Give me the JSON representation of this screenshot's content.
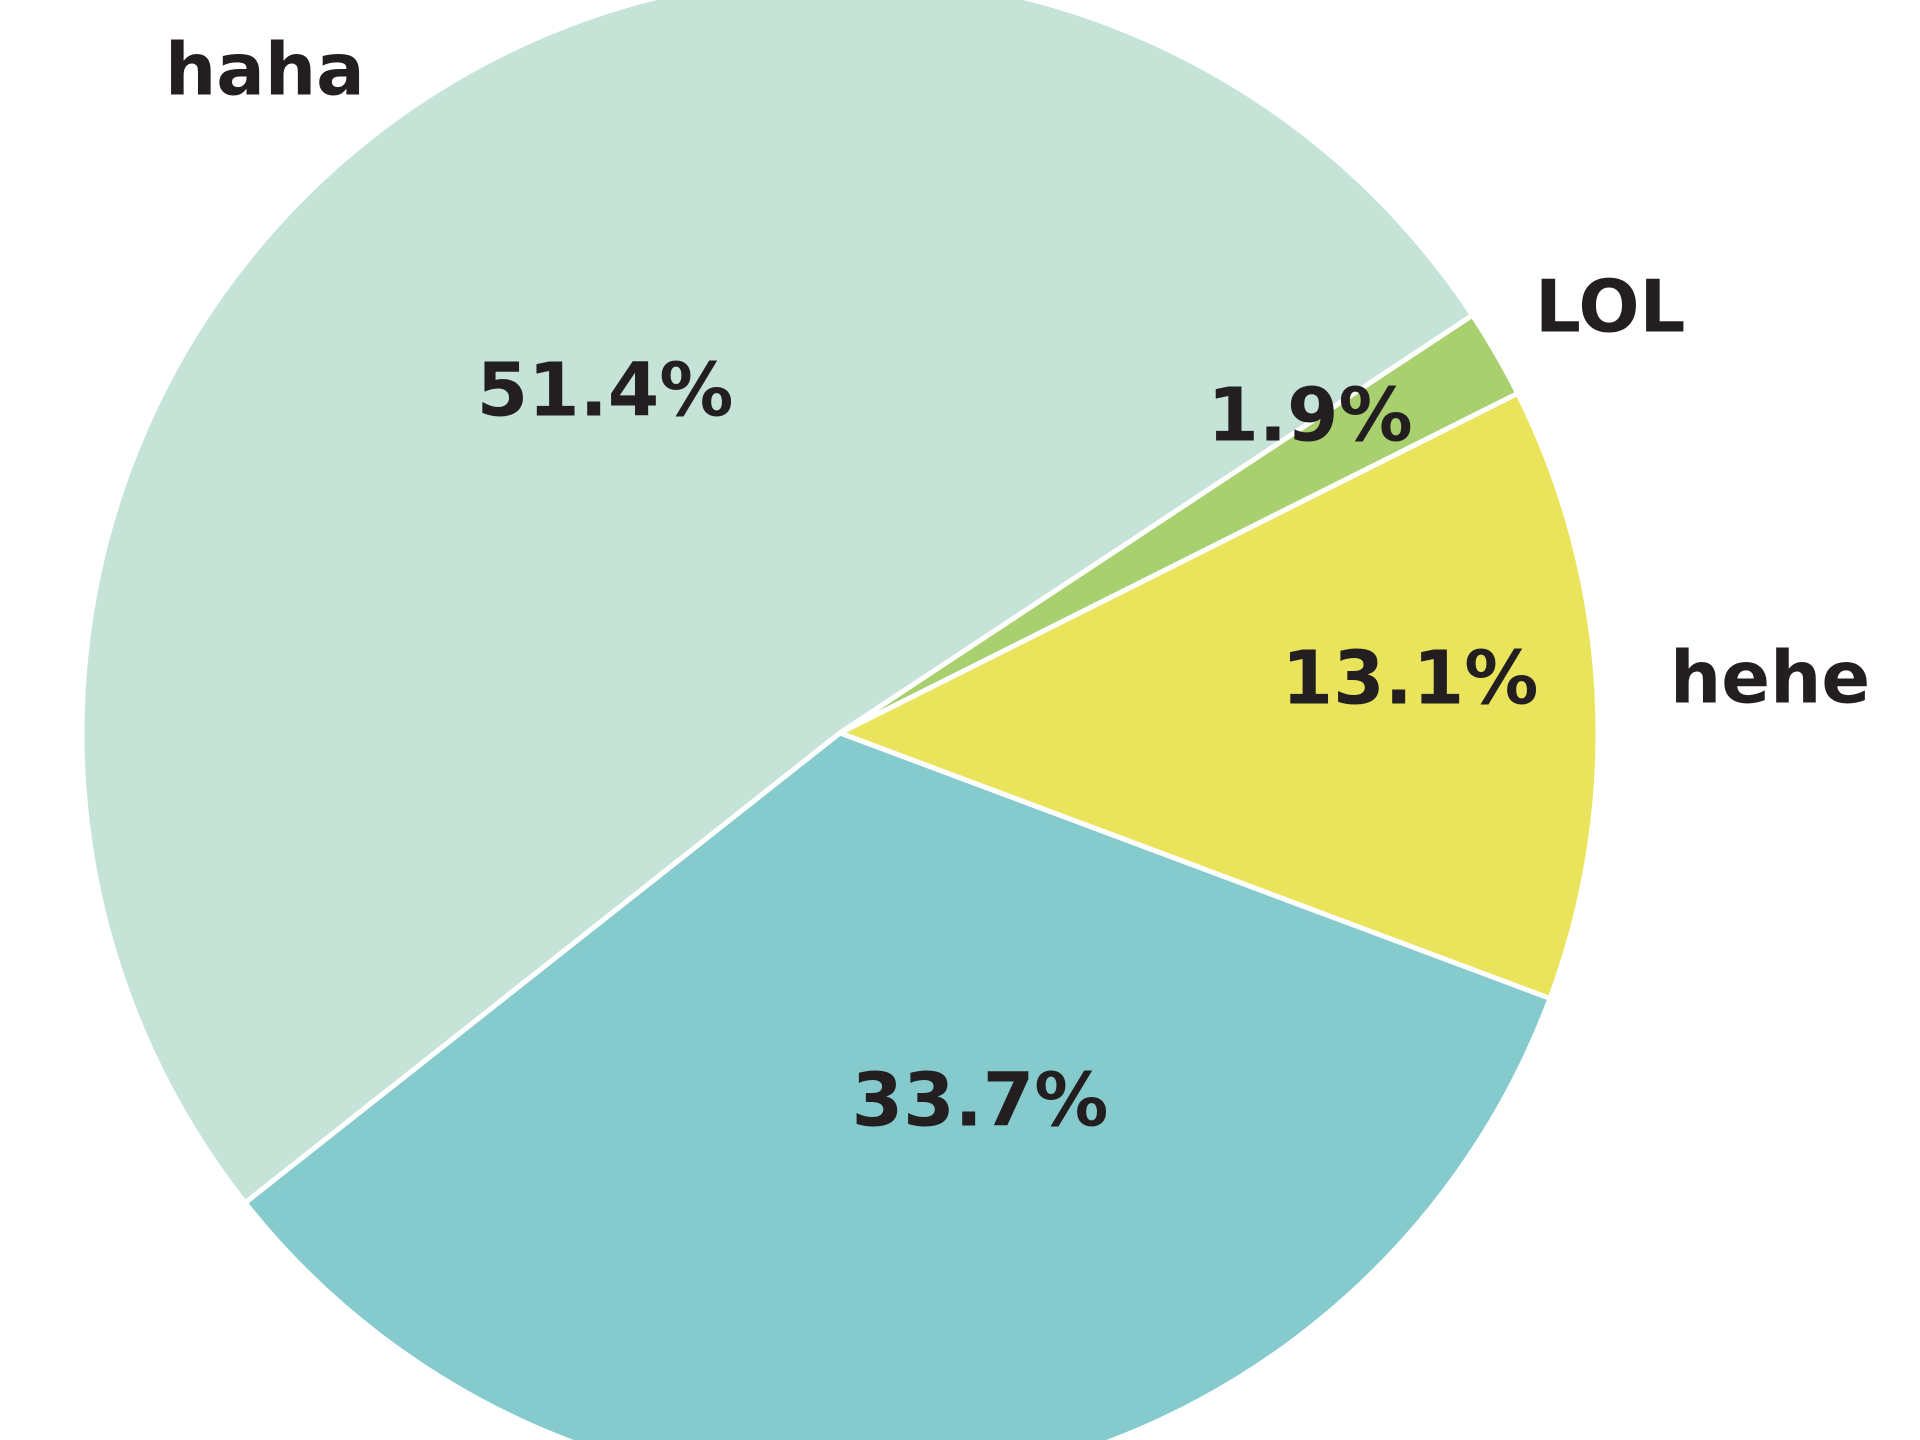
{
  "chart_data": {
    "type": "pie",
    "slices": [
      {
        "category": "haha",
        "value": 51.4,
        "pct_label": "51.4%",
        "color": "#c5e3d6",
        "shows_category_label": true
      },
      {
        "category": "LOL",
        "value": 1.9,
        "pct_label": "1.9%",
        "color": "#a8d06e",
        "shows_category_label": true
      },
      {
        "category": "hehe",
        "value": 13.1,
        "pct_label": "13.1%",
        "color": "#e9e45c",
        "shows_category_label": true
      },
      {
        "category": "",
        "value": 33.7,
        "pct_label": "33.7%",
        "color": "#85cbce",
        "shows_category_label": false
      }
    ],
    "legend": "none"
  }
}
